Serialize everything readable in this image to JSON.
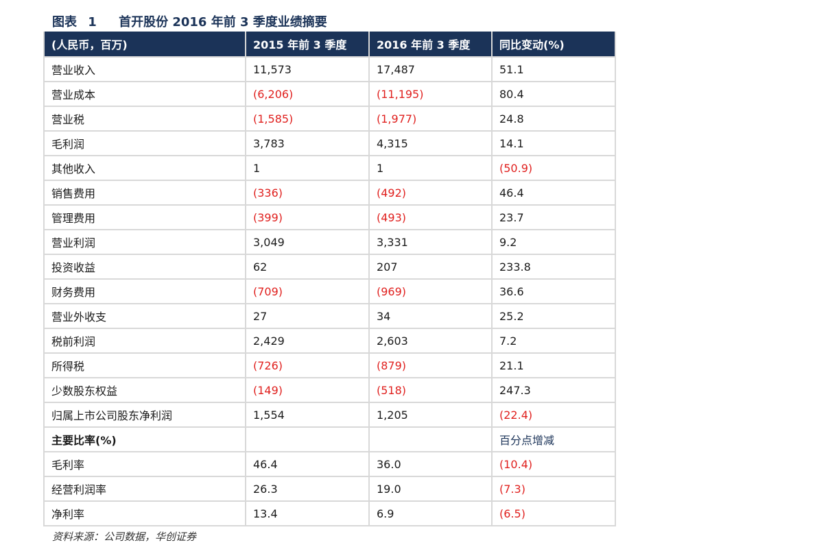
{
  "title": {
    "label": "图表",
    "number": "1",
    "text": "首开股份 2016 年前 3 季度业绩摘要"
  },
  "table": {
    "headers": [
      "(人民币，百万)",
      "2015 年前 3 季度",
      "2016 年前 3 季度",
      "同比变动(%)"
    ],
    "rows": [
      {
        "label": "营业收入",
        "v2015": "11,573",
        "v2016": "17,487",
        "change": "51.1"
      },
      {
        "label": "营业成本",
        "v2015": "(6,206)",
        "v2016": "(11,195)",
        "change": "80.4"
      },
      {
        "label": "营业税",
        "v2015": "(1,585)",
        "v2016": "(1,977)",
        "change": "24.8"
      },
      {
        "label": "毛利润",
        "v2015": "3,783",
        "v2016": "4,315",
        "change": "14.1"
      },
      {
        "label": "其他收入",
        "v2015": "1",
        "v2016": "1",
        "change": "(50.9)"
      },
      {
        "label": "销售费用",
        "v2015": "(336)",
        "v2016": "(492)",
        "change": "46.4"
      },
      {
        "label": "管理费用",
        "v2015": "(399)",
        "v2016": "(493)",
        "change": "23.7"
      },
      {
        "label": "营业利润",
        "v2015": "3,049",
        "v2016": "3,331",
        "change": "9.2"
      },
      {
        "label": "投资收益",
        "v2015": "62",
        "v2016": "207",
        "change": "233.8"
      },
      {
        "label": "财务费用",
        "v2015": "(709)",
        "v2016": "(969)",
        "change": "36.6"
      },
      {
        "label": "营业外收支",
        "v2015": "27",
        "v2016": "34",
        "change": "25.2"
      },
      {
        "label": "税前利润",
        "v2015": "2,429",
        "v2016": "2,603",
        "change": "7.2"
      },
      {
        "label": "所得税",
        "v2015": "(726)",
        "v2016": "(879)",
        "change": "21.1"
      },
      {
        "label": "少数股东权益",
        "v2015": "(149)",
        "v2016": "(518)",
        "change": "247.3"
      },
      {
        "label": "归属上市公司股东净利润",
        "v2015": "1,554",
        "v2016": "1,205",
        "change": "(22.4)"
      },
      {
        "label": "主要比率(%)",
        "v2015": "",
        "v2016": "",
        "change": "百分点增减",
        "bold": true,
        "note": true
      },
      {
        "label": "毛利率",
        "v2015": "46.4",
        "v2016": "36.0",
        "change": "(10.4)"
      },
      {
        "label": "经营利润率",
        "v2015": "26.3",
        "v2016": "19.0",
        "change": "(7.3)"
      },
      {
        "label": "净利率",
        "v2015": "13.4",
        "v2016": "6.9",
        "change": "(6.5)"
      }
    ]
  },
  "source": "资料来源：公司数据，华创证券",
  "colors": {
    "header_bg": "#1b3358",
    "negative": "#e0201e",
    "border": "#d8d8d8"
  }
}
